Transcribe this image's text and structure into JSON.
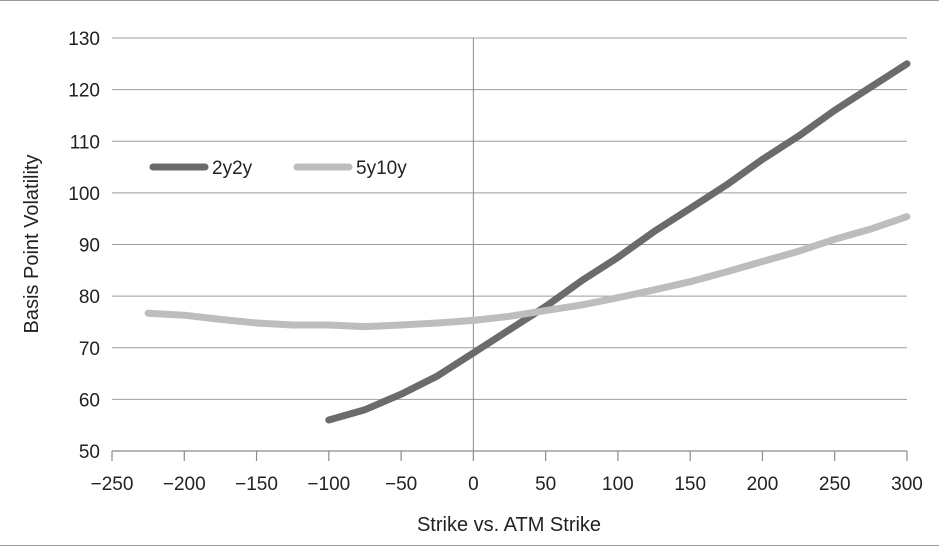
{
  "chart_data": {
    "type": "line",
    "title": "",
    "xlabel": "Strike vs. ATM Strike",
    "ylabel": "Basis Point Volatility",
    "xlim": [
      -250,
      300
    ],
    "ylim": [
      50,
      130
    ],
    "x_ticks": [
      -250,
      -200,
      -150,
      -100,
      -50,
      0,
      50,
      100,
      150,
      200,
      250,
      300
    ],
    "x_tick_labels": [
      "−250",
      "−200",
      "−150",
      "−100",
      "−50",
      "0",
      "50",
      "100",
      "150",
      "200",
      "250",
      "300"
    ],
    "y_ticks": [
      50,
      60,
      70,
      80,
      90,
      100,
      110,
      120,
      130
    ],
    "y_tick_labels": [
      "50",
      "60",
      "70",
      "80",
      "90",
      "100",
      "110",
      "120",
      "130"
    ],
    "grid": "horizontal",
    "zero_line": true,
    "legend_position": "upper-left",
    "series": [
      {
        "name": "2y2y",
        "color": "#6b6b6b",
        "x": [
          -100,
          -75,
          -50,
          -25,
          0,
          25,
          50,
          75,
          100,
          125,
          150,
          175,
          200,
          225,
          250,
          275,
          300
        ],
        "values": [
          56,
          58,
          61,
          64.5,
          69,
          73.5,
          78,
          83,
          87.5,
          92.5,
          97,
          101.5,
          106.5,
          111,
          116,
          120.5,
          125
        ]
      },
      {
        "name": "5y10y",
        "color": "#bdbdbd",
        "x": [
          -225,
          -200,
          -175,
          -150,
          -125,
          -100,
          -75,
          -50,
          -25,
          0,
          25,
          50,
          75,
          100,
          125,
          150,
          175,
          200,
          225,
          250,
          275,
          300
        ],
        "values": [
          76.7,
          76.3,
          75.5,
          74.8,
          74.4,
          74.4,
          74.1,
          74.4,
          74.8,
          75.3,
          76.1,
          77.2,
          78.3,
          79.7,
          81.2,
          82.8,
          84.7,
          86.7,
          88.7,
          91,
          93,
          95.4
        ]
      }
    ]
  }
}
